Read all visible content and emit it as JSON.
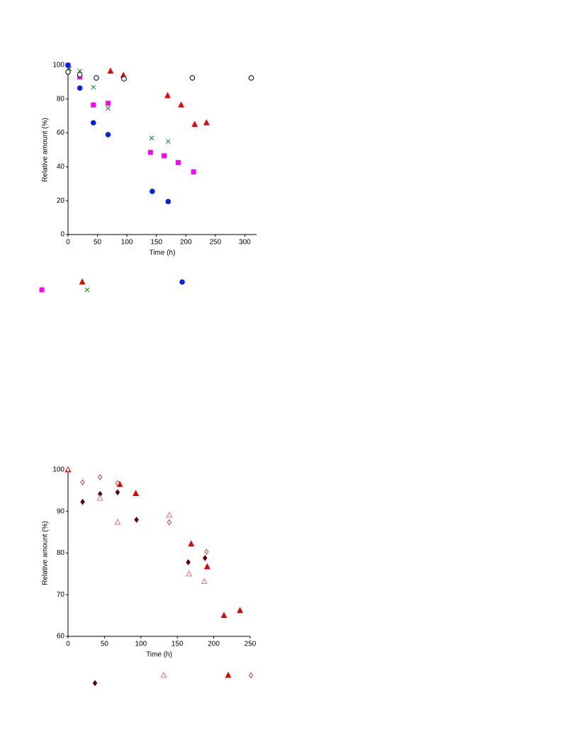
{
  "chart_data": [
    {
      "type": "scatter",
      "x_label": "Time (h)",
      "y_label": "Relative amount (%)",
      "xlim": [
        0,
        320
      ],
      "xticks": [
        0,
        50,
        100,
        150,
        200,
        250,
        300
      ],
      "ylim": [
        0,
        100
      ],
      "yticks": [
        0,
        20,
        40,
        60,
        80,
        100
      ],
      "series": [
        {
          "color": "#ff00ff",
          "marker": "square",
          "filled": true,
          "x": [
            0,
            20,
            43,
            68,
            140,
            163,
            187,
            213
          ],
          "values": [
            100,
            93,
            76.5,
            77.5,
            48.5,
            46.5,
            42.5,
            37
          ]
        },
        {
          "color": "#ee0000",
          "marker": "triangle",
          "filled": true,
          "x": [
            72,
            94,
            169,
            192,
            215,
            235
          ],
          "values": [
            96.5,
            94,
            82,
            76.5,
            65,
            66
          ]
        },
        {
          "color": "#1a7a1a",
          "marker": "x",
          "filled": false,
          "x": [
            2,
            20,
            43,
            68,
            142,
            170
          ],
          "values": [
            98,
            96.5,
            87,
            74.5,
            57,
            55
          ]
        },
        {
          "color": "#0022ee",
          "marker": "circle",
          "filled": true,
          "x": [
            0,
            20,
            43,
            68,
            143,
            170
          ],
          "values": [
            100,
            86.5,
            66,
            59,
            25.5,
            19.5
          ]
        },
        {
          "color": "#000000",
          "marker": "circle",
          "filled": false,
          "x": [
            0,
            20,
            48,
            95,
            211,
            311
          ],
          "values": [
            96,
            94.5,
            92.5,
            92,
            92.5,
            92.5
          ]
        }
      ]
    },
    {
      "type": "scatter",
      "x_label": "Time (h)",
      "y_label": "Relative amount (%)",
      "xlim": [
        0,
        250
      ],
      "xticks": [
        0,
        50,
        100,
        150,
        200,
        250
      ],
      "ylim": [
        60,
        100
      ],
      "yticks": [
        60,
        70,
        80,
        90,
        100
      ],
      "series": [
        {
          "color": "#5a0000",
          "marker": "diamond",
          "filled": true,
          "x": [
            0,
            20,
            44,
            68,
            94,
            165,
            188
          ],
          "values": [
            100,
            92.3,
            94.2,
            94.6,
            88,
            77.8,
            78.8
          ]
        },
        {
          "color": "#f07070",
          "marker": "triangle",
          "filled": false,
          "x": [
            0,
            44,
            68,
            139,
            166,
            187
          ],
          "values": [
            100,
            93.2,
            87.4,
            89.1,
            75,
            73.2
          ]
        },
        {
          "color": "#e00000",
          "marker": "triangle",
          "filled": true,
          "x": [
            0,
            71,
            93,
            169,
            191,
            214,
            236
          ],
          "values": [
            100,
            96.5,
            94.3,
            82.2,
            76.7,
            65,
            66.2
          ]
        },
        {
          "color": "#c04040",
          "marker": "diamond",
          "filled": false,
          "x": [
            0,
            20,
            44,
            68,
            139,
            190
          ],
          "values": [
            100,
            97,
            98.2,
            96.8,
            87.4,
            80.3
          ]
        }
      ]
    }
  ]
}
